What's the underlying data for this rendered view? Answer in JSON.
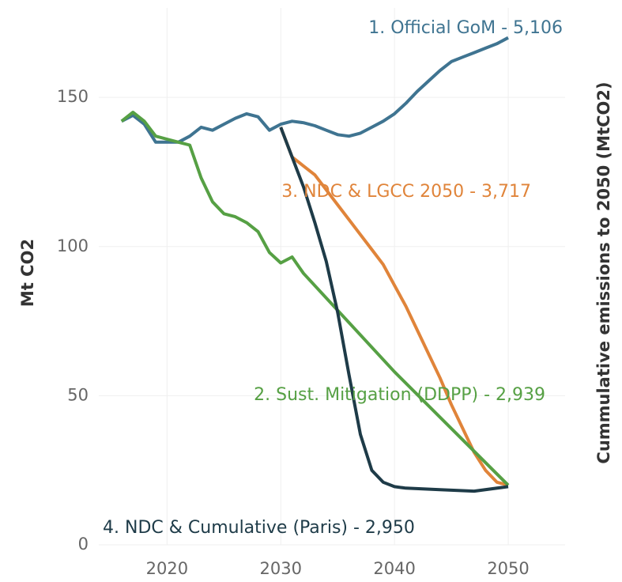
{
  "chart_data": {
    "type": "line",
    "ylabel": "Mt CO2",
    "y2label": "Cummulative emissions to 2050 (MtCO2)",
    "xlim": [
      2014,
      2055
    ],
    "ylim": [
      0,
      180
    ],
    "xticks": [
      2020,
      2030,
      2040,
      2050
    ],
    "yticks": [
      0,
      50,
      100,
      150
    ],
    "grid": true,
    "series": [
      {
        "name": "1. Official GoM - 5,106",
        "color": "#3f7491",
        "x": [
          2016,
          2017,
          2018,
          2019,
          2020,
          2021,
          2022,
          2023,
          2024,
          2025,
          2026,
          2027,
          2028,
          2029,
          2030,
          2031,
          2032,
          2033,
          2034,
          2035,
          2036,
          2037,
          2038,
          2039,
          2040,
          2041,
          2042,
          2043,
          2044,
          2045,
          2046,
          2047,
          2048,
          2049,
          2050
        ],
        "values": [
          142,
          144,
          141,
          135,
          135,
          135,
          137,
          140,
          139,
          141,
          143,
          144.5,
          143.5,
          139,
          141,
          142,
          141.5,
          140.5,
          139,
          137.5,
          137,
          138,
          140,
          142,
          144.5,
          148,
          152,
          155.5,
          159,
          162,
          163.5,
          165,
          166.5,
          168,
          170
        ]
      },
      {
        "name": "3. NDC & LGCC 2050 - 3,717",
        "color": "#e0843a",
        "x": [
          2030,
          2031,
          2032,
          2033,
          2034,
          2035,
          2036,
          2037,
          2038,
          2039,
          2040,
          2041,
          2042,
          2043,
          2044,
          2045,
          2046,
          2047,
          2048,
          2049,
          2050
        ],
        "values": [
          140,
          130,
          127,
          124,
          119,
          114,
          109,
          104,
          99,
          94,
          87,
          80,
          72,
          64,
          56,
          47,
          39,
          31,
          25,
          21,
          20
        ]
      },
      {
        "name": "2. Sust. Mitigation (DDPP) - 2,939",
        "color": "#56a044",
        "x": [
          2016,
          2017,
          2018,
          2019,
          2020,
          2021,
          2022,
          2023,
          2024,
          2025,
          2026,
          2027,
          2028,
          2029,
          2030,
          2031,
          2032,
          2040,
          2050
        ],
        "values": [
          142,
          145,
          142,
          137,
          136,
          135,
          134,
          123,
          115,
          111,
          110,
          108,
          105,
          98,
          94.5,
          96.5,
          91,
          58,
          20
        ]
      },
      {
        "name": "4. NDC & Cumulative (Paris) - 2,950",
        "color": "#1e3b48",
        "x": [
          2030,
          2031,
          2032,
          2033,
          2034,
          2035,
          2036,
          2037,
          2038,
          2039,
          2040,
          2041,
          2044,
          2047,
          2050
        ],
        "values": [
          140,
          130,
          120,
          108,
          95,
          78,
          57,
          37,
          25,
          21,
          19.5,
          19,
          18.5,
          18,
          19.5
        ]
      }
    ]
  }
}
